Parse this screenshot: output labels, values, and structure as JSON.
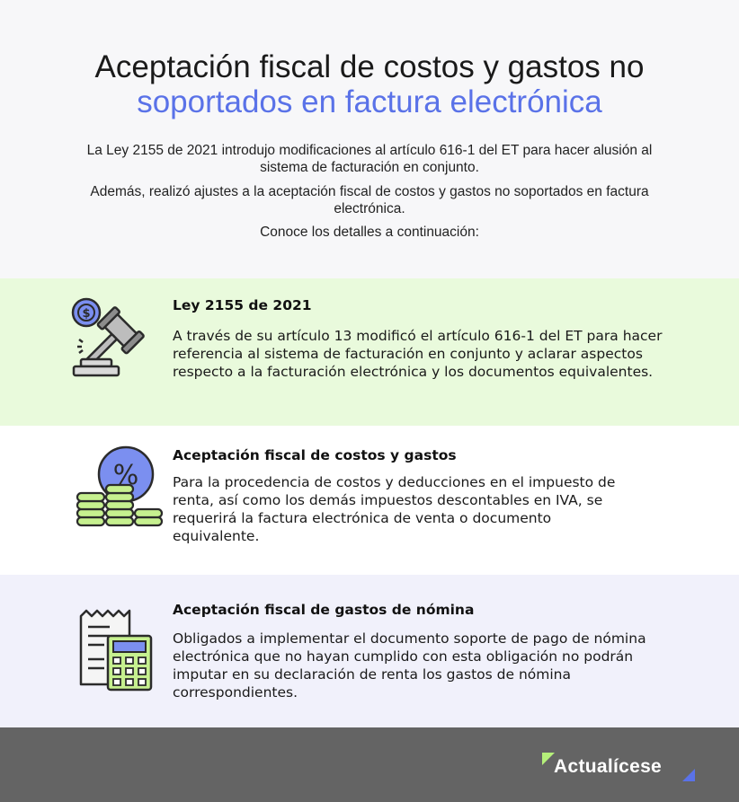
{
  "header": {
    "title_line1": "Aceptación fiscal de costos y gastos no",
    "title_line2": "soportados en factura electrónica",
    "intro_p1": "La Ley 2155 de 2021 introdujo modificaciones al artículo 616-1 del ET para hacer alusión al sistema de facturación en conjunto.",
    "intro_p2": "Además, realizó ajustes a la aceptación fiscal de costos y gastos no soportados en factura electrónica.",
    "intro_p3": "Conoce los detalles a continuación:"
  },
  "sections": [
    {
      "icon": "gavel-icon",
      "title": "Ley 2155 de 2021",
      "body": "A través de su artículo 13 modificó el artículo 616-1 del ET para hacer referencia al sistema de facturación en conjunto y aclarar aspectos respecto a la facturación electrónica y los documentos equivalentes."
    },
    {
      "icon": "percent-coins-icon",
      "title": "Aceptación fiscal de costos y gastos",
      "body": "Para la procedencia de costos y deducciones en el impuesto de renta, así como los demás impuestos descontables en IVA, se requerirá la factura electrónica de venta o documento equivalente."
    },
    {
      "icon": "receipt-calculator-icon",
      "title": "Aceptación fiscal de gastos de nómina",
      "body": "Obligados a implementar el documento soporte de pago de nómina electrónica que no hayan cumplido con esta obligación no podrán imputar en su declaración de renta los gastos de nómina correspondientes."
    }
  ],
  "footer": {
    "brand": "Actualícese"
  },
  "colors": {
    "accent_blue": "#5a72e8",
    "green_band": "#e9fadc",
    "lavender_band": "#f1f1fb",
    "footer_gray": "#646464",
    "logo_green": "#b5f07a"
  }
}
